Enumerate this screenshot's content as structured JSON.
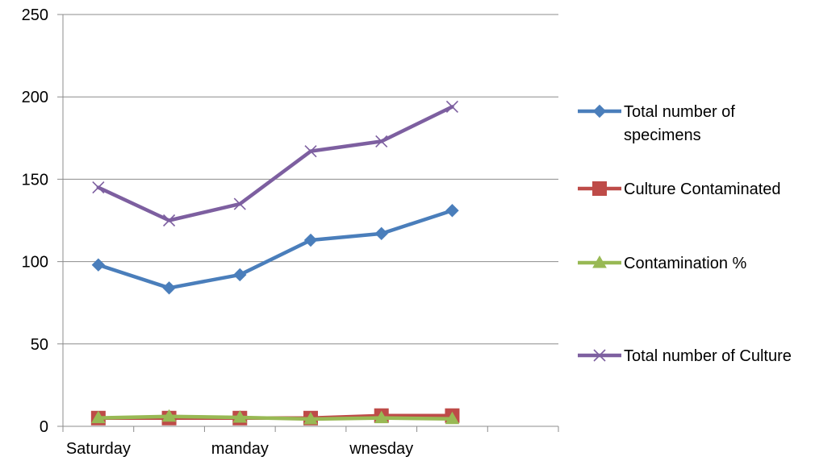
{
  "chart_data": {
    "type": "line",
    "title": "",
    "xlabel": "",
    "ylabel": "",
    "x_tick_labels": [
      "Saturday",
      "",
      "manday",
      "",
      "wnesday",
      "",
      ""
    ],
    "category_count": 7,
    "ylim": [
      0,
      250
    ],
    "y_ticks": [
      0,
      50,
      100,
      150,
      200,
      250
    ],
    "grid": true,
    "legend_position": "right",
    "series": [
      {
        "name": "Total number of specimens",
        "values": [
          98,
          84,
          92,
          113,
          117,
          131
        ],
        "color": "#4a7ebb",
        "marker": "diamond",
        "legend_lines": [
          "Total number of",
          "specimens"
        ]
      },
      {
        "name": "Culture Contaminated",
        "values": [
          5,
          5,
          5,
          5,
          6.5,
          6.5
        ],
        "color": "#be4b48",
        "marker": "square",
        "legend_lines": [
          "Culture Contaminated"
        ]
      },
      {
        "name": "Contamination %",
        "values": [
          5.1,
          6,
          5.4,
          4.4,
          5.1,
          4.5
        ],
        "color": "#98b954",
        "marker": "triangle",
        "legend_lines": [
          "Contamination %"
        ]
      },
      {
        "name": "Total number of Culture",
        "values": [
          145,
          125,
          135,
          167,
          173,
          194
        ],
        "color": "#7d5fa0",
        "marker": "x",
        "legend_lines": [
          "Total number of Culture"
        ]
      }
    ]
  }
}
